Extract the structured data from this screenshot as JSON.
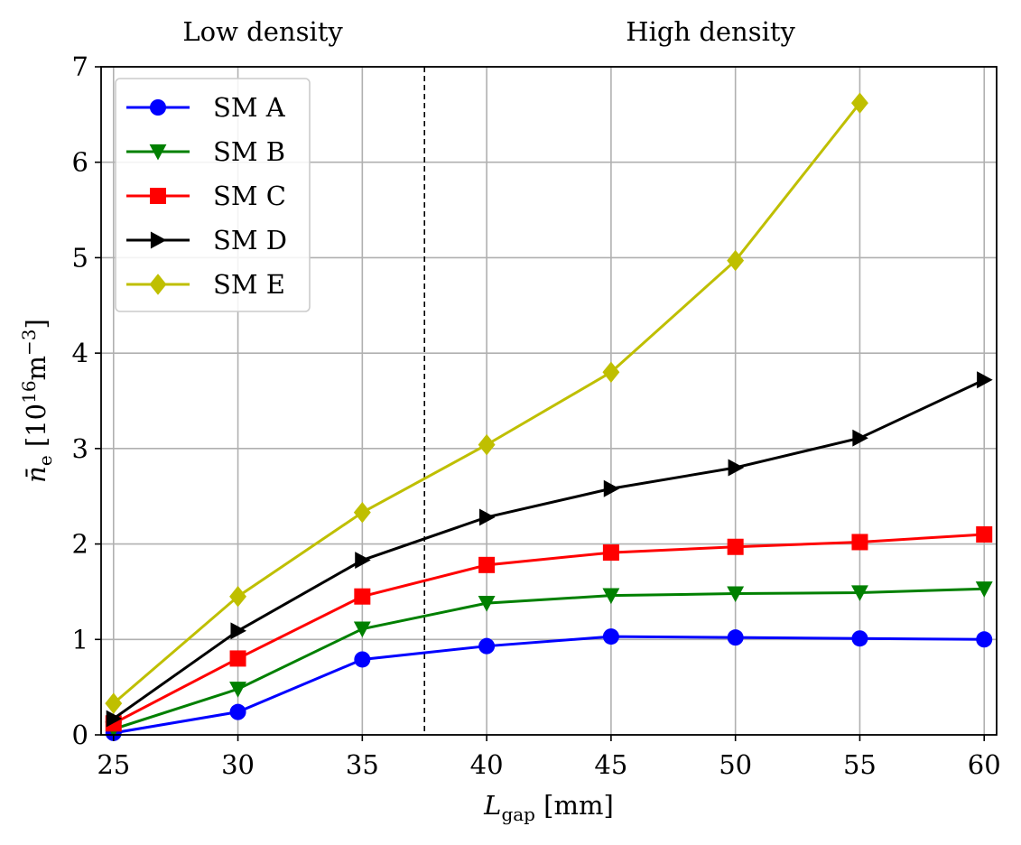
{
  "chart_data": {
    "type": "line",
    "x": [
      25,
      30,
      35,
      40,
      45,
      50,
      55,
      60
    ],
    "xlim": [
      24.5,
      60.5
    ],
    "ylim": [
      0,
      7
    ],
    "xticks": [
      25,
      30,
      35,
      40,
      45,
      50,
      55,
      60
    ],
    "yticks": [
      0,
      1,
      2,
      3,
      4,
      5,
      6,
      7
    ],
    "grid": true,
    "xlabel": {
      "symbol": "L",
      "sub": "gap",
      "unit": " [mm]"
    },
    "ylabel": {
      "symbol": "n̄",
      "sub": "e",
      "unit_pre": " [10",
      "unit_exp": "16",
      "unit_mid": "m",
      "unit_exp2": "−3",
      "unit_post": "]"
    },
    "divider_x": 37.5,
    "regions": {
      "left": "Low density",
      "right": "High density"
    },
    "legend_position": "upper-left",
    "series": [
      {
        "name": "SM A",
        "color": "#0000ff",
        "marker": "circle",
        "values": [
          0.02,
          0.24,
          0.79,
          0.93,
          1.03,
          1.02,
          1.01,
          1.0
        ]
      },
      {
        "name": "SM B",
        "color": "#008000",
        "marker": "triangle-down",
        "values": [
          0.06,
          0.48,
          1.11,
          1.38,
          1.46,
          1.48,
          1.49,
          1.53
        ]
      },
      {
        "name": "SM C",
        "color": "#ff0000",
        "marker": "square",
        "values": [
          0.12,
          0.8,
          1.45,
          1.78,
          1.91,
          1.97,
          2.02,
          2.1
        ]
      },
      {
        "name": "SM D",
        "color": "#000000",
        "marker": "triangle-right",
        "values": [
          0.17,
          1.09,
          1.83,
          2.28,
          2.58,
          2.8,
          3.11,
          3.72
        ]
      },
      {
        "name": "SM E",
        "color": "#bfbf00",
        "marker": "diamond",
        "values": [
          0.33,
          1.45,
          2.33,
          3.04,
          3.8,
          4.97,
          6.62,
          null
        ]
      }
    ]
  }
}
